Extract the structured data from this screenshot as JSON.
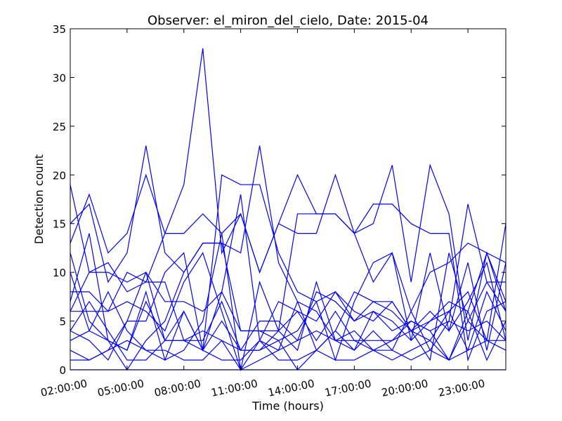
{
  "chart_data": {
    "type": "line",
    "title": "Observer: el_miron_del_cielo, Date: 2015-04",
    "xlabel": "Time (hours)",
    "ylabel": "Detection count",
    "xlim": [
      2,
      25
    ],
    "ylim": [
      0,
      35
    ],
    "grid": false,
    "legend": "none",
    "line_color": "#0000ff",
    "x_ticks": [
      {
        "value": 2,
        "label": "02:00:00"
      },
      {
        "value": 5,
        "label": "05:00:00"
      },
      {
        "value": 8,
        "label": "08:00:00"
      },
      {
        "value": 11,
        "label": "11:00:00"
      },
      {
        "value": 14,
        "label": "14:00:00"
      },
      {
        "value": 17,
        "label": "17:00:00"
      },
      {
        "value": 20,
        "label": "20:00:00"
      },
      {
        "value": 23,
        "label": "23:00:00"
      }
    ],
    "y_ticks": [
      0,
      5,
      10,
      15,
      20,
      25,
      30,
      35
    ],
    "x": [
      2,
      3,
      4,
      5,
      6,
      7,
      8,
      9,
      10,
      11,
      12,
      13,
      14,
      15,
      16,
      17,
      18,
      19,
      20,
      21,
      22,
      23,
      24,
      25
    ],
    "series": [
      {
        "values": [
          19,
          10,
          11,
          8,
          9,
          14,
          14,
          16,
          14,
          16,
          10,
          15,
          20,
          16,
          16,
          14,
          15,
          21,
          9,
          21,
          16,
          3,
          12,
          7
        ]
      },
      {
        "values": [
          15,
          17,
          9,
          12,
          23,
          12,
          10,
          13,
          13,
          12,
          23,
          11,
          7,
          2,
          4,
          2,
          6,
          4,
          5,
          4,
          5,
          17,
          9,
          9
        ]
      },
      {
        "values": [
          13,
          18,
          12,
          14,
          20,
          14,
          19,
          33,
          12,
          16,
          10,
          15,
          14,
          14,
          20,
          14,
          9,
          12,
          6,
          10,
          11,
          13,
          12,
          11
        ]
      },
      {
        "values": [
          12,
          5,
          3,
          2,
          7,
          3,
          3,
          2,
          8,
          4,
          4,
          3,
          4,
          7,
          8,
          6,
          5,
          7,
          4,
          3,
          6,
          2,
          8,
          4
        ]
      },
      {
        "values": [
          10,
          4,
          3,
          0,
          3,
          5,
          10,
          13,
          13,
          4,
          4,
          4,
          16,
          16,
          16,
          14,
          17,
          17,
          15,
          14,
          14,
          1,
          6,
          7
        ]
      },
      {
        "values": [
          8,
          8,
          6,
          10,
          9,
          9,
          3,
          3,
          7,
          2,
          2,
          4,
          2,
          9,
          3,
          2,
          4,
          2,
          6,
          2,
          1,
          6,
          12,
          6
        ]
      },
      {
        "values": [
          7,
          14,
          3,
          2,
          8,
          1,
          2,
          5,
          14,
          0,
          3,
          1,
          1,
          2,
          4,
          8,
          7,
          6,
          4,
          1,
          12,
          5,
          3,
          15
        ]
      },
      {
        "values": [
          6,
          10,
          10,
          9,
          10,
          3,
          6,
          2,
          20,
          19,
          19,
          12,
          8,
          7,
          1,
          7,
          11,
          12,
          3,
          12,
          4,
          11,
          2,
          11
        ]
      },
      {
        "values": [
          6,
          6,
          6,
          7,
          6,
          4,
          9,
          12,
          6,
          0,
          9,
          4,
          6,
          5,
          8,
          5,
          7,
          7,
          4,
          6,
          4,
          7,
          11,
          3
        ]
      },
      {
        "values": [
          4,
          3,
          1,
          5,
          10,
          7,
          7,
          6,
          8,
          18,
          3,
          2,
          7,
          6,
          3,
          3,
          3,
          3,
          5,
          4,
          1,
          5,
          9,
          6
        ]
      },
      {
        "values": [
          4,
          7,
          4,
          1,
          1,
          3,
          3,
          4,
          3,
          0,
          1,
          2,
          3,
          8,
          7,
          5,
          6,
          5,
          3,
          5,
          6,
          8,
          3,
          2
        ]
      },
      {
        "values": [
          3,
          4,
          8,
          4,
          2,
          1,
          6,
          2,
          5,
          2,
          5,
          5,
          3,
          4,
          3,
          4,
          2,
          3,
          4,
          5,
          7,
          6,
          1,
          5
        ]
      },
      {
        "values": [
          2,
          1,
          2,
          5,
          5,
          10,
          12,
          2,
          1,
          1,
          3,
          7,
          6,
          3,
          6,
          3,
          2,
          2,
          1,
          2,
          5,
          4,
          5,
          3
        ]
      },
      {
        "values": [
          1,
          1,
          2,
          3,
          2,
          2,
          1,
          1,
          3,
          2,
          2,
          3,
          0,
          2,
          1,
          1,
          2,
          1,
          2,
          3,
          1,
          2,
          3,
          3
        ]
      },
      {
        "values": [
          0,
          0,
          0,
          0,
          0,
          0,
          0,
          0,
          0,
          0,
          0,
          0,
          0,
          0,
          0,
          0,
          0,
          0,
          0,
          0,
          0,
          0,
          0,
          0
        ]
      }
    ]
  }
}
